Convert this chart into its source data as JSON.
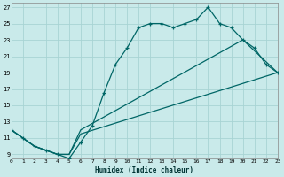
{
  "xlabel": "Humidex (Indice chaleur)",
  "background_color": "#c9eaea",
  "grid_color": "#a8d4d4",
  "line_color": "#006666",
  "xlim": [
    0,
    23
  ],
  "ylim": [
    8.5,
    27.5
  ],
  "xticks": [
    0,
    1,
    2,
    3,
    4,
    5,
    6,
    7,
    8,
    9,
    10,
    11,
    12,
    13,
    14,
    15,
    16,
    17,
    18,
    19,
    20,
    21,
    22,
    23
  ],
  "yticks": [
    9,
    11,
    13,
    15,
    17,
    19,
    21,
    23,
    25,
    27
  ],
  "line1_x": [
    0,
    1,
    2,
    3,
    4,
    5,
    6,
    7,
    8,
    9,
    10,
    11,
    12,
    13,
    14,
    15,
    16,
    17,
    18,
    19,
    20,
    21,
    22,
    23
  ],
  "line1_y": [
    12,
    11,
    10,
    9.5,
    9,
    8.5,
    10.5,
    12.5,
    16.5,
    20,
    22,
    24.5,
    25,
    25,
    24.5,
    25,
    25.5,
    27,
    25,
    24.5,
    23,
    22,
    20,
    19
  ],
  "line2_x": [
    0,
    2,
    3,
    4,
    5,
    6,
    20,
    23
  ],
  "line2_y": [
    12,
    10,
    9.5,
    9,
    9,
    12,
    23,
    19
  ],
  "line3_x": [
    0,
    2,
    3,
    4,
    5,
    6,
    23
  ],
  "line3_y": [
    12,
    10,
    9.5,
    9,
    9,
    11.5,
    19
  ]
}
